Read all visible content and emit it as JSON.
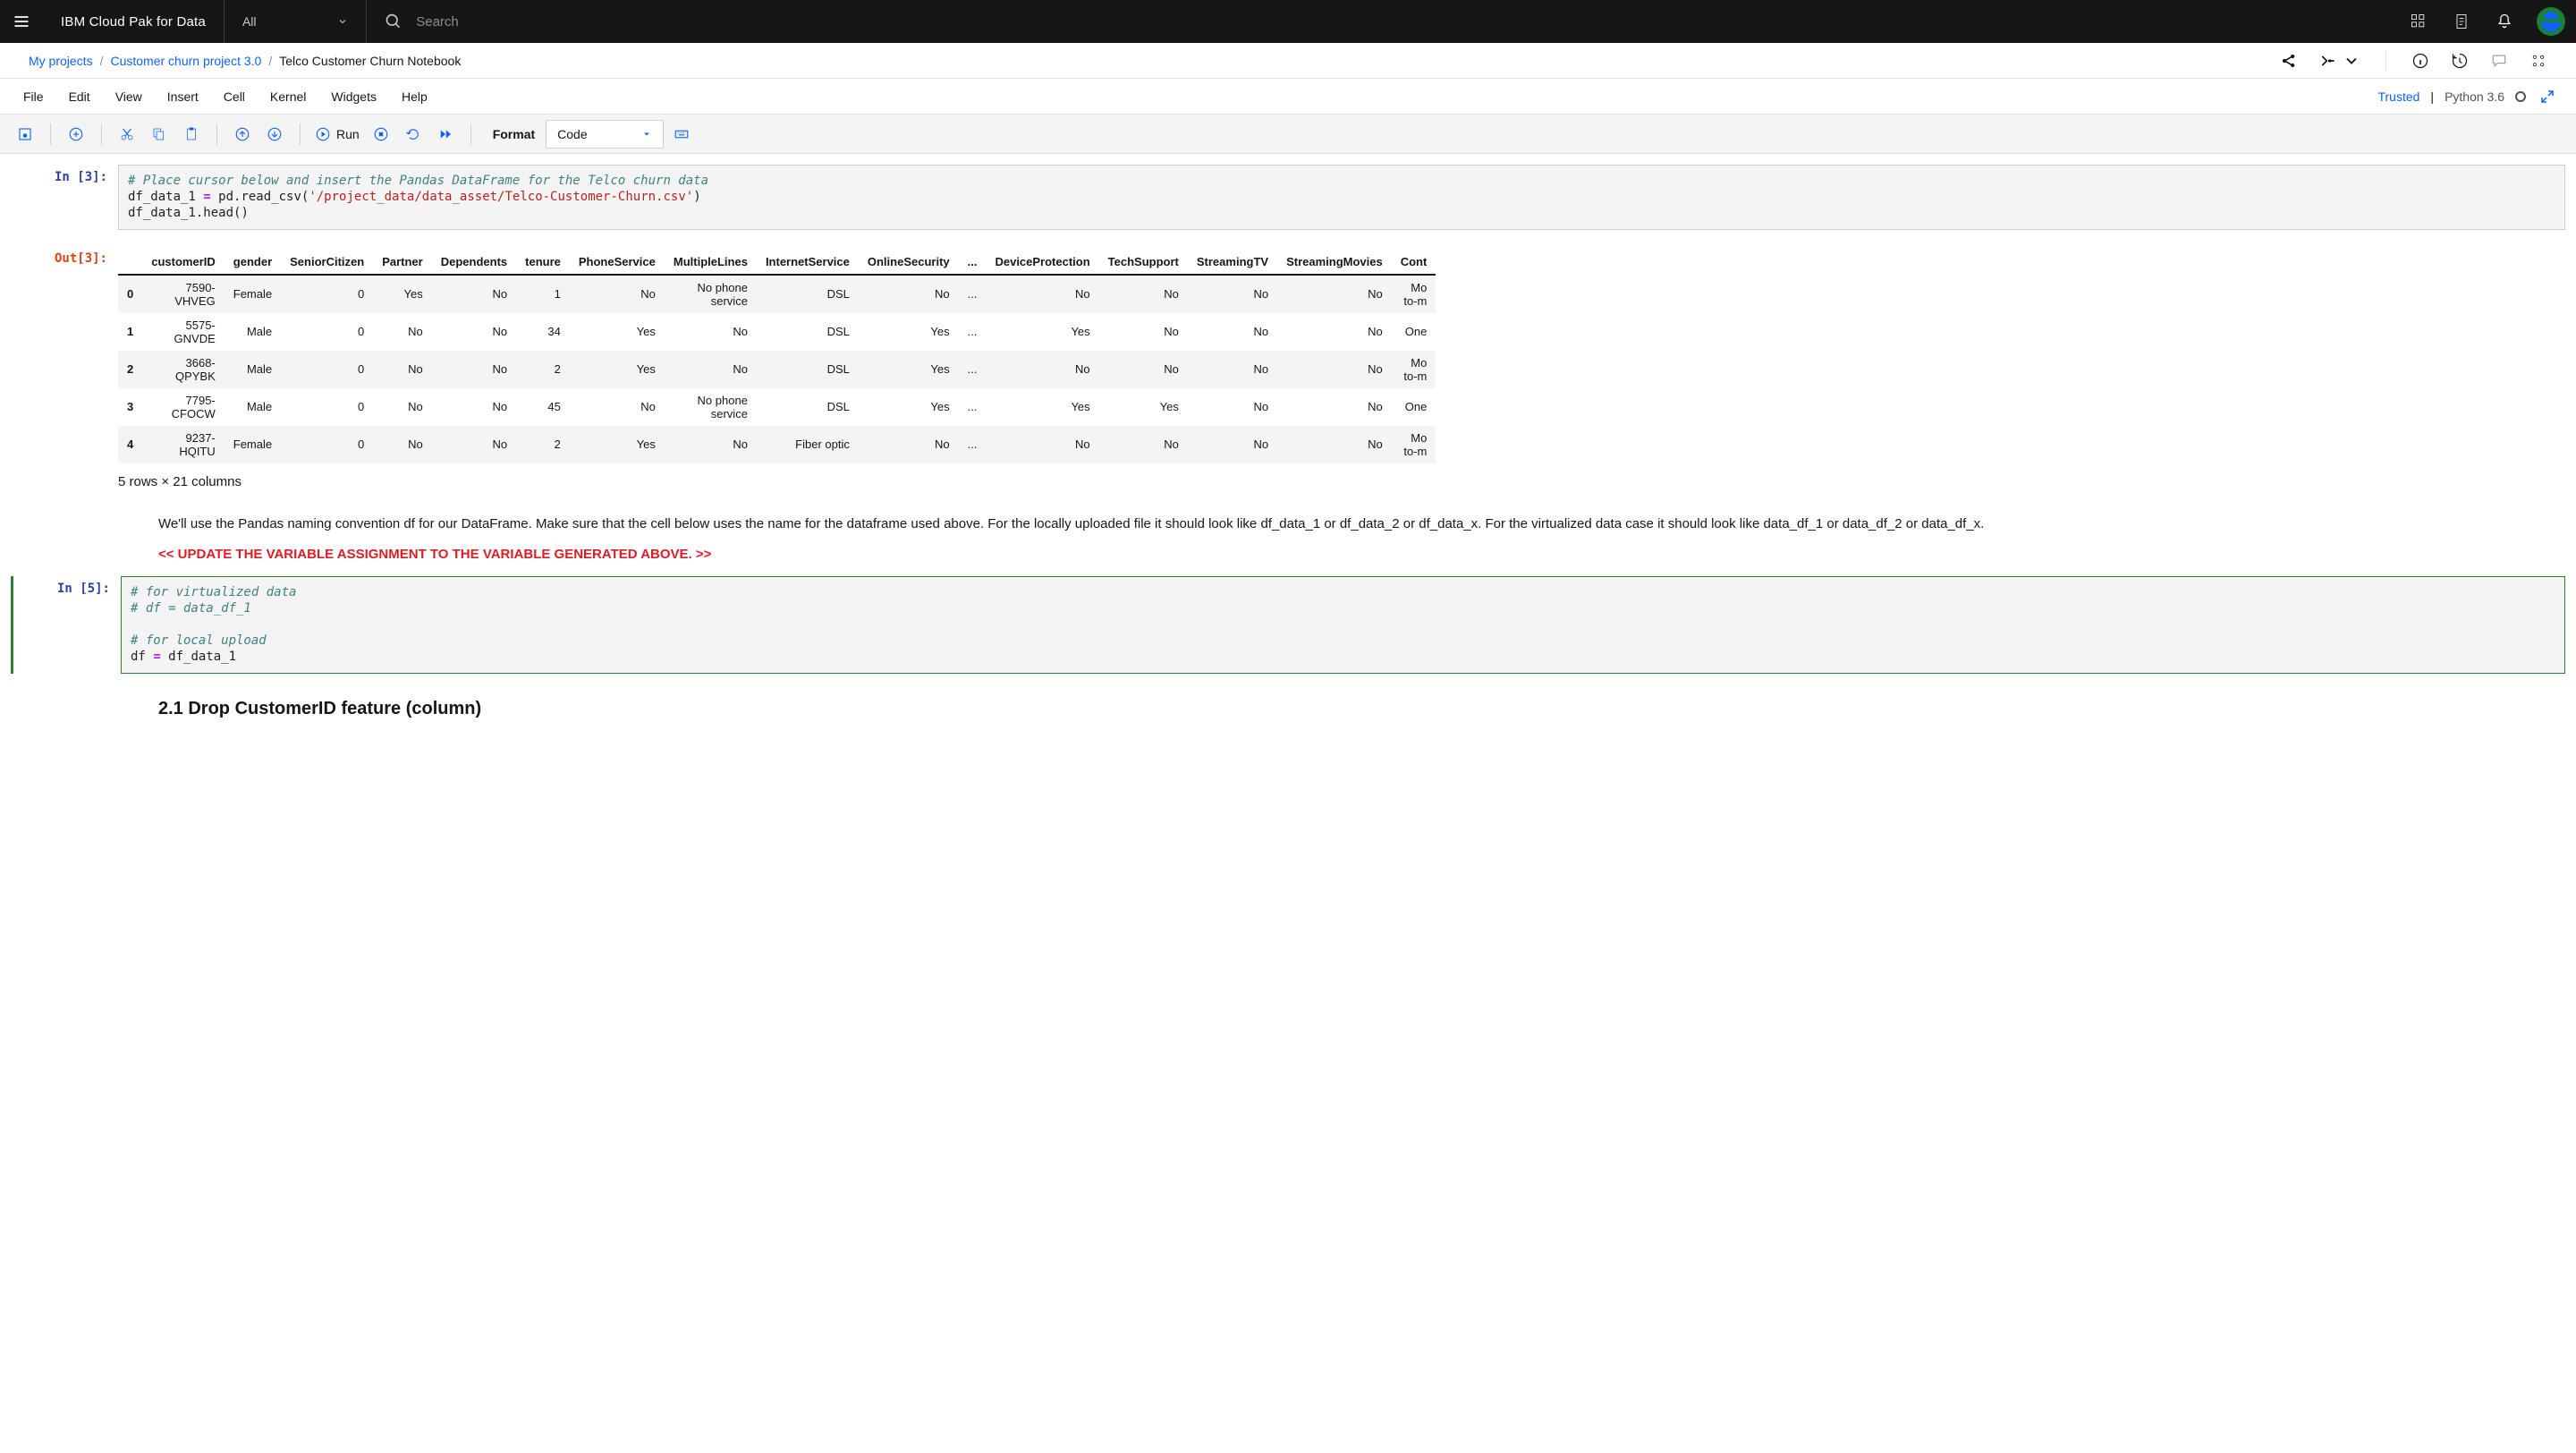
{
  "topbar": {
    "product": "IBM Cloud Pak for Data",
    "scope": "All",
    "search_placeholder": "Search"
  },
  "breadcrumb": {
    "root": "My projects",
    "project": "Customer churn project 3.0",
    "notebook": "Telco Customer Churn Notebook"
  },
  "menu": {
    "file": "File",
    "edit": "Edit",
    "view": "View",
    "insert": "Insert",
    "cell": "Cell",
    "kernel": "Kernel",
    "widgets": "Widgets",
    "help": "Help",
    "trusted": "Trusted",
    "python": "Python 3.6"
  },
  "toolbar": {
    "run": "Run",
    "format": "Format",
    "celltype": "Code"
  },
  "cell3": {
    "prompt": "In [3]:",
    "line1": "# Place cursor below and insert the Pandas DataFrame for the Telco churn data",
    "l2a": "df_data_1 ",
    "l2b": "= ",
    "l2c": "pd",
    "l2d": ".",
    "l2e": "read_csv",
    "l2f": "(",
    "l2g": "'/project_data/data_asset/Telco-Customer-Churn.csv'",
    "l2h": ")",
    "l3a": "df_data_1",
    "l3b": ".",
    "l3c": "head",
    "l3d": "()"
  },
  "out3": {
    "prompt": "Out[3]:",
    "columns": [
      "customerID",
      "gender",
      "SeniorCitizen",
      "Partner",
      "Dependents",
      "tenure",
      "PhoneService",
      "MultipleLines",
      "InternetService",
      "OnlineSecurity",
      "...",
      "DeviceProtection",
      "TechSupport",
      "StreamingTV",
      "StreamingMovies",
      "Cont"
    ],
    "rows": [
      {
        "idx": "0",
        "cells": [
          "7590-VHVEG",
          "Female",
          "0",
          "Yes",
          "No",
          "1",
          "No",
          "No phone service",
          "DSL",
          "No",
          "...",
          "No",
          "No",
          "No",
          "No",
          "Mo to-m"
        ]
      },
      {
        "idx": "1",
        "cells": [
          "5575-GNVDE",
          "Male",
          "0",
          "No",
          "No",
          "34",
          "Yes",
          "No",
          "DSL",
          "Yes",
          "...",
          "Yes",
          "No",
          "No",
          "No",
          "One"
        ]
      },
      {
        "idx": "2",
        "cells": [
          "3668-QPYBK",
          "Male",
          "0",
          "No",
          "No",
          "2",
          "Yes",
          "No",
          "DSL",
          "Yes",
          "...",
          "No",
          "No",
          "No",
          "No",
          "Mo to-m"
        ]
      },
      {
        "idx": "3",
        "cells": [
          "7795-CFOCW",
          "Male",
          "0",
          "No",
          "No",
          "45",
          "No",
          "No phone service",
          "DSL",
          "Yes",
          "...",
          "Yes",
          "Yes",
          "No",
          "No",
          "One"
        ]
      },
      {
        "idx": "4",
        "cells": [
          "9237-HQITU",
          "Female",
          "0",
          "No",
          "No",
          "2",
          "Yes",
          "No",
          "Fiber optic",
          "No",
          "...",
          "No",
          "No",
          "No",
          "No",
          "Mo to-m"
        ]
      }
    ],
    "summary": "5 rows × 21 columns"
  },
  "md1": {
    "para": "We'll use the Pandas naming convention df for our DataFrame. Make sure that the cell below uses the name for the dataframe used above. For the locally uploaded file it should look like df_data_1 or df_data_2 or df_data_x. For the virtualized data case it should look like data_df_1 or data_df_2 or data_df_x.",
    "warn": "<< UPDATE THE VARIABLE ASSIGNMENT TO THE VARIABLE GENERATED ABOVE. >>"
  },
  "cell5": {
    "prompt": "In [5]:",
    "l1": "# for virtualized data",
    "l2": "# df = data_df_1",
    "l3": "# for local upload",
    "l4a": "df ",
    "l4b": "= ",
    "l4c": "df_data_1"
  },
  "md2": {
    "heading": "2.1 Drop CustomerID feature (column)"
  },
  "colors": {
    "primary": "#0f62fe",
    "codebg": "#f4f4f4",
    "border": "#e0e0e0",
    "warn": "#da1e28",
    "comment": "#408080",
    "string": "#BA2121",
    "keyword": "#AA22FF",
    "out": "#D84315",
    "in": "#303F9F"
  }
}
